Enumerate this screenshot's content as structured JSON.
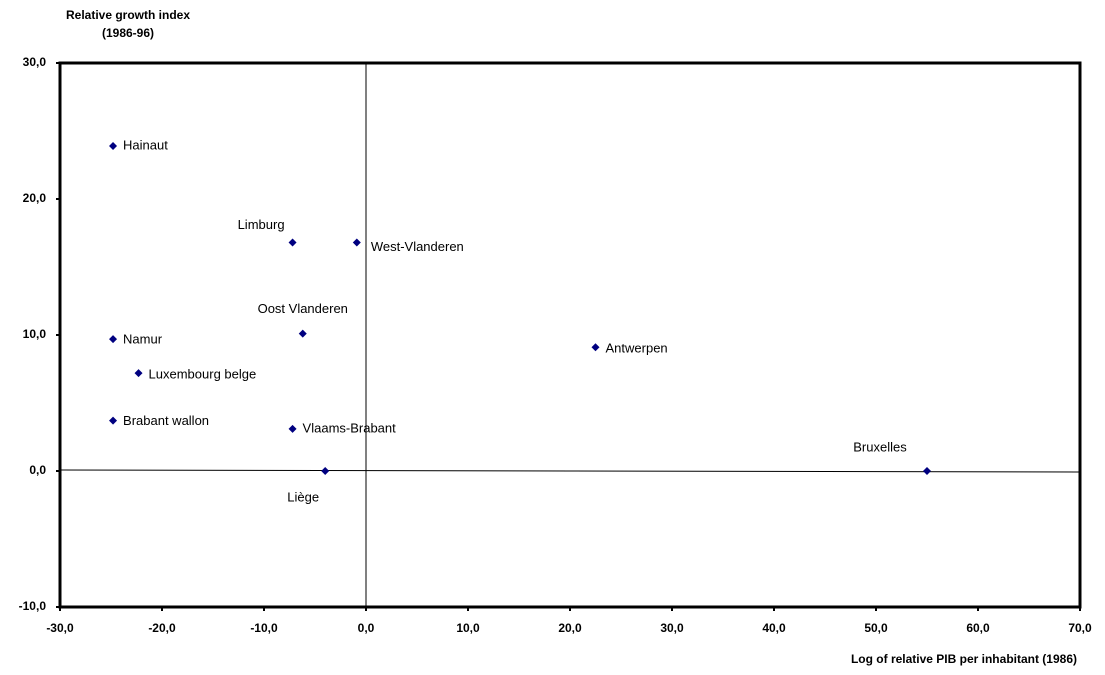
{
  "chart_data": {
    "type": "scatter",
    "ylabel": [
      "Relative growth index",
      "(1986-96)"
    ],
    "xlabel": "Log of relative PIB per inhabitant (1986)",
    "color": "#000080",
    "labels": [
      "Hainaut",
      "Limburg",
      "West-Vlanderen",
      "Oost Vlanderen",
      "Namur",
      "Luxembourg belge",
      "Brabant wallon",
      "Vlaams-Brabant",
      "Liège",
      "Antwerpen",
      "Bruxelles"
    ],
    "x": [
      -24.8,
      -7.2,
      -0.9,
      -6.2,
      -24.8,
      -22.3,
      -24.8,
      -7.2,
      -4.0,
      22.5,
      55.0
    ],
    "values": [
      23.9,
      16.8,
      16.8,
      10.1,
      9.7,
      7.2,
      3.7,
      3.1,
      0,
      9.1,
      0
    ],
    "xlim": [
      -30,
      70
    ],
    "ylim": [
      -10,
      30
    ],
    "xticks": [
      {
        "value": -30,
        "label": "-30,0"
      },
      {
        "value": -20,
        "label": "-20,0"
      },
      {
        "value": -10,
        "label": "-10,0"
      },
      {
        "value": 0,
        "label": "0,0"
      },
      {
        "value": 10,
        "label": "10,0"
      },
      {
        "value": 20,
        "label": "20,0"
      },
      {
        "value": 30,
        "label": "30,0"
      },
      {
        "value": 40,
        "label": "40,0"
      },
      {
        "value": 50,
        "label": "50,0"
      },
      {
        "value": 60,
        "label": "60,0"
      },
      {
        "value": 70,
        "label": "70,0"
      }
    ],
    "yticks": [
      {
        "value": -10,
        "label": "-10,0"
      },
      {
        "value": 0,
        "label": "0,0"
      },
      {
        "value": 10,
        "label": "10,0"
      },
      {
        "value": 20,
        "label": "20,0"
      },
      {
        "value": 30,
        "label": "30,0"
      }
    ]
  }
}
